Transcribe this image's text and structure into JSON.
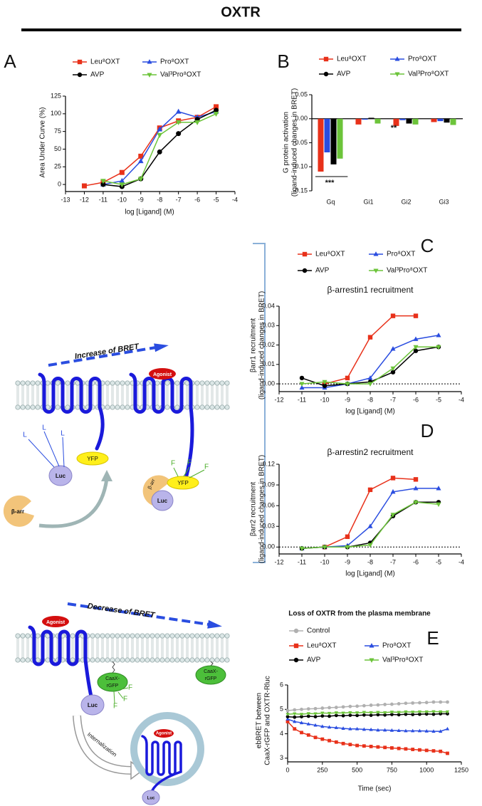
{
  "title": "OXTR",
  "chart_data": [
    {
      "type": "line",
      "panel": "A",
      "xlabel": "log [Ligand] (M)",
      "ylabel": "Area Under Curve (%)",
      "xlim": [
        -13,
        -4
      ],
      "xticks": [
        -13,
        -12,
        -11,
        -10,
        -9,
        -8,
        -7,
        -6,
        -5,
        -4
      ],
      "ylim": [
        -10,
        125
      ],
      "yticks": [
        0,
        25,
        50,
        75,
        100,
        125
      ],
      "series": [
        {
          "name": "Leu⁸OXT",
          "color": "#e8311a",
          "marker": "square",
          "x": [
            -12,
            -11,
            -10,
            -9,
            -8,
            -7,
            -6,
            -5
          ],
          "values": [
            -2,
            3,
            17,
            40,
            80,
            90,
            95,
            110
          ]
        },
        {
          "name": "Pro⁸OXT",
          "color": "#2a4de0",
          "marker": "triangle-up",
          "x": [
            -11,
            -10,
            -9,
            -8,
            -7,
            -6,
            -5
          ],
          "values": [
            0,
            5,
            33,
            78,
            103,
            95,
            103
          ]
        },
        {
          "name": "AVP",
          "color": "#000000",
          "marker": "circle",
          "x": [
            -11,
            -10,
            -9,
            -8,
            -7,
            -6,
            -5
          ],
          "values": [
            0,
            -3,
            8,
            46,
            72,
            92,
            105
          ]
        },
        {
          "name": "Val³Pro⁸OXT",
          "color": "#6cc43a",
          "marker": "triangle-down",
          "x": [
            -11,
            -10,
            -9,
            -8,
            -7,
            -6,
            -5
          ],
          "values": [
            5,
            0,
            8,
            70,
            88,
            88,
            100
          ]
        }
      ]
    },
    {
      "type": "bar",
      "panel": "B",
      "ylabel": [
        "G protein activation",
        "(ligand-induced changes in BRET)"
      ],
      "categories": [
        "Gq",
        "Gi1",
        "Gi2",
        "Gi3"
      ],
      "ylim": [
        -0.15,
        0.05
      ],
      "yticks": [
        0.05,
        {
          "value": 0,
          "label": "0.00"
        },
        -0.05,
        {
          "value": -0.1,
          "label": "-0.10"
        },
        -0.15
      ],
      "annotations": [
        "***",
        "**"
      ],
      "series": [
        {
          "name": "Leu⁸OXT",
          "color": "#e8311a",
          "marker": "square",
          "values": [
            -0.11,
            -0.012,
            -0.015,
            -0.007
          ]
        },
        {
          "name": "Pro⁸OXT",
          "color": "#2a4de0",
          "marker": "triangle-up",
          "values": [
            -0.07,
            -0.002,
            -0.003,
            -0.005
          ]
        },
        {
          "name": "AVP",
          "color": "#000000",
          "marker": "circle",
          "values": [
            -0.095,
            0.002,
            -0.01,
            -0.008
          ]
        },
        {
          "name": "Val³Pro⁸OXT",
          "color": "#6cc43a",
          "marker": "triangle-down",
          "values": [
            -0.083,
            -0.01,
            -0.012,
            -0.013
          ]
        }
      ]
    },
    {
      "type": "line",
      "panel": "C",
      "title": "β-arrestin1 recruitment",
      "xlabel": "log [Ligand] (M)",
      "ylabel": [
        "βarr1 recruitment",
        "(ligand-induced changes in BRET)"
      ],
      "xlim": [
        -12,
        -4
      ],
      "xticks": [
        -12,
        -11,
        -10,
        -9,
        -8,
        -7,
        -6,
        -5,
        -4
      ],
      "ylim": [
        -0.004,
        0.04
      ],
      "yticks": [
        {
          "value": 0,
          "label": "0.00"
        },
        0.01,
        0.02,
        0.03,
        0.04
      ],
      "zero_line": true,
      "series": [
        {
          "name": "Leu⁸OXT",
          "color": "#e8311a",
          "marker": "square",
          "x": [
            -10,
            -9,
            -8,
            -7,
            -6
          ],
          "values": [
            0,
            0.003,
            0.024,
            0.035,
            0.035
          ]
        },
        {
          "name": "Pro⁸OXT",
          "color": "#2a4de0",
          "marker": "triangle-up",
          "x": [
            -11,
            -10,
            -9,
            -8,
            -7,
            -6,
            -5
          ],
          "values": [
            -0.002,
            -0.002,
            0,
            0.003,
            0.018,
            0.023,
            0.025
          ]
        },
        {
          "name": "AVP",
          "color": "#000000",
          "marker": "circle",
          "x": [
            -11,
            -10,
            -9,
            -8,
            -7,
            -6,
            -5
          ],
          "values": [
            0.003,
            -0.001,
            0,
            0.001,
            0.006,
            0.017,
            0.019
          ]
        },
        {
          "name": "Val³Pro⁸OXT",
          "color": "#6cc43a",
          "marker": "triangle-down",
          "x": [
            -11,
            -10,
            -9,
            -8,
            -7,
            -6,
            -5
          ],
          "values": [
            0,
            0.001,
            0,
            0,
            0.008,
            0.019,
            0.019
          ]
        }
      ]
    },
    {
      "type": "line",
      "panel": "D",
      "title": "β-arrestin2 recruitment",
      "xlabel": "log [Ligand] (M)",
      "ylabel": [
        "βarr2 recruitment",
        "(ligand-induced changes in BRET)"
      ],
      "xlim": [
        -12,
        -4
      ],
      "xticks": [
        -12,
        -11,
        -10,
        -9,
        -8,
        -7,
        -6,
        -5,
        -4
      ],
      "ylim": [
        -0.01,
        0.12
      ],
      "yticks": [
        {
          "value": 0,
          "label": "0.00"
        },
        0.03,
        0.06,
        0.09,
        0.12
      ],
      "zero_line": true,
      "series": [
        {
          "name": "Leu⁸OXT",
          "color": "#e8311a",
          "marker": "square",
          "x": [
            -10,
            -9,
            -8,
            -7,
            -6
          ],
          "values": [
            0,
            0.015,
            0.083,
            0.1,
            0.098
          ]
        },
        {
          "name": "Pro⁸OXT",
          "color": "#2a4de0",
          "marker": "triangle-up",
          "x": [
            -11,
            -10,
            -9,
            -8,
            -7,
            -6,
            -5
          ],
          "values": [
            -0.002,
            0,
            0.002,
            0.03,
            0.08,
            0.085,
            0.085
          ]
        },
        {
          "name": "AVP",
          "color": "#000000",
          "marker": "circle",
          "x": [
            -11,
            -10,
            -9,
            -8,
            -7,
            -6,
            -5
          ],
          "values": [
            -0.002,
            0,
            0,
            0.006,
            0.045,
            0.065,
            0.065
          ]
        },
        {
          "name": "Val³Pro⁸OXT",
          "color": "#6cc43a",
          "marker": "triangle-down",
          "x": [
            -11,
            -10,
            -9,
            -8,
            -7,
            -6,
            -5
          ],
          "values": [
            -0.002,
            0,
            0,
            0.003,
            0.047,
            0.065,
            0.062
          ]
        }
      ]
    },
    {
      "type": "line",
      "panel": "E",
      "title": "Loss of OXTR from the plasma membrane",
      "xlabel": "Time (sec)",
      "ylabel": [
        "ebBRET between",
        "CaaX-rGFP and OXTR-Rluc"
      ],
      "xlim": [
        0,
        1250
      ],
      "xticks": [
        0,
        250,
        500,
        750,
        1000,
        1250
      ],
      "ylim": [
        2.85,
        6
      ],
      "yticks": [
        3,
        4,
        5,
        6
      ],
      "x": [
        0,
        50,
        100,
        150,
        200,
        250,
        300,
        350,
        400,
        450,
        500,
        550,
        600,
        650,
        700,
        750,
        800,
        850,
        900,
        950,
        1000,
        1050,
        1100,
        1150
      ],
      "series": [
        {
          "name": "Control",
          "color": "#b0b0b0",
          "marker": "circle",
          "values": [
            4.95,
            4.98,
            5.0,
            5.02,
            5.03,
            5.05,
            5.07,
            5.08,
            5.1,
            5.12,
            5.13,
            5.15,
            5.17,
            5.18,
            5.2,
            5.21,
            5.23,
            5.25,
            5.26,
            5.27,
            5.28,
            5.3,
            5.3,
            5.3
          ]
        },
        {
          "name": "Leu⁸OXT",
          "color": "#e8311a",
          "marker": "square",
          "values": [
            4.5,
            4.2,
            4.05,
            3.95,
            3.85,
            3.78,
            3.72,
            3.66,
            3.6,
            3.56,
            3.52,
            3.5,
            3.48,
            3.46,
            3.44,
            3.42,
            3.4,
            3.38,
            3.36,
            3.34,
            3.32,
            3.3,
            3.28,
            3.2
          ]
        },
        {
          "name": "Pro⁸OXT",
          "color": "#2a4de0",
          "marker": "triangle-up",
          "values": [
            4.6,
            4.5,
            4.45,
            4.4,
            4.35,
            4.3,
            4.27,
            4.25,
            4.22,
            4.2,
            4.2,
            4.18,
            4.17,
            4.15,
            4.15,
            4.14,
            4.13,
            4.12,
            4.12,
            4.12,
            4.11,
            4.1,
            4.1,
            4.2
          ]
        },
        {
          "name": "AVP",
          "color": "#000000",
          "marker": "circle",
          "values": [
            4.7,
            4.68,
            4.7,
            4.72,
            4.7,
            4.73,
            4.72,
            4.75,
            4.74,
            4.76,
            4.75,
            4.77,
            4.76,
            4.78,
            4.77,
            4.79,
            4.78,
            4.8,
            4.79,
            4.8,
            4.81,
            4.8,
            4.82,
            4.82
          ]
        },
        {
          "name": "Val³Pro⁸OXT",
          "color": "#6cc43a",
          "marker": "triangle-down",
          "values": [
            4.8,
            4.82,
            4.8,
            4.83,
            4.82,
            4.85,
            4.84,
            4.86,
            4.85,
            4.87,
            4.86,
            4.88,
            4.87,
            4.88,
            4.87,
            4.89,
            4.88,
            4.9,
            4.89,
            4.9,
            4.9,
            4.91,
            4.9,
            4.9
          ]
        }
      ]
    }
  ],
  "diagrams": [
    {
      "labels": [
        "Increase of BRET",
        "Agonist",
        "YFP",
        "YFP",
        "Luc",
        "Luc",
        "β-arr",
        "β-arr",
        "L",
        "L",
        "L",
        "F",
        "F",
        "F"
      ]
    },
    {
      "labels": [
        "Decrease of BRET",
        "Agonist",
        "CaaX-",
        "rGFP",
        "CaaX-",
        "rGFP",
        "Luc",
        "F",
        "F",
        "F",
        "Internalization",
        "Agonist",
        "Luc"
      ]
    }
  ]
}
